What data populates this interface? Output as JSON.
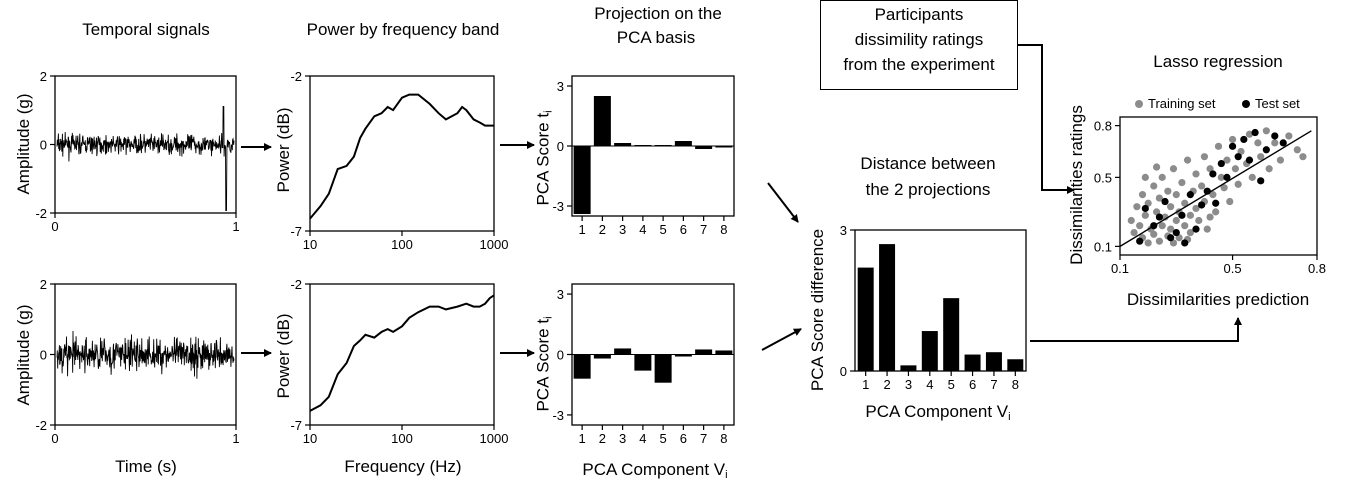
{
  "titles": {
    "temporal": "Temporal signals",
    "power": "Power by frequency band",
    "projection_1": "Projection on the",
    "projection_2": "PCA basis",
    "distance_1": "Distance between",
    "distance_2": "the 2 projections",
    "lasso": "Lasso regression"
  },
  "ratings_box": {
    "line1": "Participants",
    "line2": "dissimility ratings",
    "line3": "from the experiment"
  },
  "labels": {
    "amplitude": "Amplitude (g)",
    "time": "Time (s)",
    "power": "Power (dB)",
    "frequency": "Frequency (Hz)",
    "pca_score": "PCA Score t",
    "pca_score_sub": "i",
    "pca_component": "PCA Component V",
    "pca_component_sub": "i",
    "score_difference": "PCA Score difference",
    "dissim_ratings": "Dissimilarities ratings",
    "dissim_prediction": "Dissimilarities prediction"
  },
  "legend": {
    "training": "Training set",
    "test": "Test set"
  },
  "ticks": {
    "amp": [
      "2",
      "0",
      "-2"
    ],
    "time": [
      "0",
      "1"
    ],
    "pow": [
      "-2",
      "-7"
    ],
    "freq": [
      "10",
      "100",
      "1000"
    ],
    "score": [
      "3",
      "0",
      "-3"
    ],
    "comp": [
      "1",
      "2",
      "3",
      "4",
      "5",
      "6",
      "7",
      "8"
    ],
    "diff": [
      "3",
      "0"
    ],
    "lasso_y": [
      "0.8",
      "0.5",
      "0.1"
    ],
    "lasso_x": [
      "0.1",
      "0.5",
      "0.8"
    ]
  },
  "colors": {
    "training": "#8c8c8c",
    "test": "#000000",
    "bar": "#000000"
  },
  "chart_data": [
    {
      "type": "bar",
      "name": "pca_top",
      "categories": [
        "1",
        "2",
        "3",
        "4",
        "5",
        "6",
        "7",
        "8"
      ],
      "values": [
        -3.4,
        2.5,
        0.15,
        0.05,
        0.05,
        0.25,
        -0.15,
        -0.05
      ],
      "ylim": [
        -3.5,
        3.5
      ]
    },
    {
      "type": "bar",
      "name": "pca_bottom",
      "categories": [
        "1",
        "2",
        "3",
        "4",
        "5",
        "6",
        "7",
        "8"
      ],
      "values": [
        -1.2,
        -0.2,
        0.3,
        -0.8,
        -1.4,
        -0.1,
        0.25,
        0.2
      ],
      "ylim": [
        -3.5,
        3.5
      ]
    },
    {
      "type": "bar",
      "name": "pca_difference",
      "categories": [
        "1",
        "2",
        "3",
        "4",
        "5",
        "6",
        "7",
        "8"
      ],
      "values": [
        2.2,
        2.7,
        0.12,
        0.85,
        1.55,
        0.35,
        0.4,
        0.25
      ],
      "ylim": [
        0,
        3
      ]
    },
    {
      "type": "line",
      "name": "power_top",
      "xscale": "log",
      "x": [
        10,
        13,
        16,
        20,
        25,
        30,
        35,
        40,
        50,
        60,
        70,
        80,
        100,
        120,
        150,
        200,
        250,
        300,
        400,
        450,
        500,
        600,
        700,
        800,
        1000
      ],
      "y": [
        -6.6,
        -6.2,
        -5.8,
        -5.0,
        -4.9,
        -4.6,
        -4.0,
        -3.7,
        -3.3,
        -3.2,
        -3.0,
        -3.1,
        -2.7,
        -2.6,
        -2.6,
        -2.9,
        -3.2,
        -3.4,
        -3.2,
        -3.0,
        -3.1,
        -3.4,
        -3.5,
        -3.6,
        -3.6
      ],
      "xlim": [
        10,
        1000
      ],
      "ylim": [
        -7,
        -2
      ]
    },
    {
      "type": "line",
      "name": "power_bottom",
      "xscale": "log",
      "x": [
        10,
        13,
        16,
        20,
        25,
        30,
        35,
        40,
        50,
        60,
        70,
        80,
        100,
        120,
        150,
        200,
        250,
        300,
        400,
        500,
        600,
        700,
        800,
        900,
        1000
      ],
      "y": [
        -6.5,
        -6.3,
        -6.0,
        -5.2,
        -4.8,
        -4.2,
        -4.0,
        -3.8,
        -3.9,
        -3.7,
        -3.6,
        -3.7,
        -3.5,
        -3.2,
        -3.0,
        -2.8,
        -2.8,
        -2.9,
        -2.8,
        -2.7,
        -2.8,
        -2.8,
        -2.7,
        -2.5,
        -2.4
      ],
      "xlim": [
        10,
        1000
      ],
      "ylim": [
        -7,
        -2
      ]
    },
    {
      "type": "scatter",
      "name": "lasso",
      "xlim": [
        0.1,
        0.8
      ],
      "ylim": [
        0.05,
        0.85
      ],
      "trend": {
        "x": [
          0.1,
          0.78
        ],
        "y": [
          0.1,
          0.77
        ]
      },
      "series": [
        {
          "name": "Training set",
          "points": [
            [
              0.14,
              0.25
            ],
            [
              0.15,
              0.18
            ],
            [
              0.16,
              0.33
            ],
            [
              0.17,
              0.22
            ],
            [
              0.18,
              0.15
            ],
            [
              0.18,
              0.4
            ],
            [
              0.19,
              0.28
            ],
            [
              0.2,
              0.12
            ],
            [
              0.2,
              0.35
            ],
            [
              0.21,
              0.2
            ],
            [
              0.22,
              0.45
            ],
            [
              0.22,
              0.17
            ],
            [
              0.23,
              0.3
            ],
            [
              0.24,
              0.13
            ],
            [
              0.24,
              0.38
            ],
            [
              0.25,
              0.22
            ],
            [
              0.25,
              0.5
            ],
            [
              0.26,
              0.27
            ],
            [
              0.27,
              0.16
            ],
            [
              0.27,
              0.42
            ],
            [
              0.28,
              0.33
            ],
            [
              0.28,
              0.2
            ],
            [
              0.29,
              0.55
            ],
            [
              0.3,
              0.25
            ],
            [
              0.3,
              0.4
            ],
            [
              0.31,
              0.15
            ],
            [
              0.31,
              0.3
            ],
            [
              0.32,
              0.47
            ],
            [
              0.33,
              0.22
            ],
            [
              0.33,
              0.35
            ],
            [
              0.34,
              0.6
            ],
            [
              0.35,
              0.28
            ],
            [
              0.35,
              0.18
            ],
            [
              0.36,
              0.42
            ],
            [
              0.37,
              0.52
            ],
            [
              0.37,
              0.32
            ],
            [
              0.38,
              0.25
            ],
            [
              0.39,
              0.45
            ],
            [
              0.4,
              0.62
            ],
            [
              0.4,
              0.36
            ],
            [
              0.41,
              0.2
            ],
            [
              0.42,
              0.55
            ],
            [
              0.43,
              0.4
            ],
            [
              0.44,
              0.3
            ],
            [
              0.45,
              0.68
            ],
            [
              0.46,
              0.5
            ],
            [
              0.47,
              0.44
            ],
            [
              0.48,
              0.6
            ],
            [
              0.49,
              0.36
            ],
            [
              0.5,
              0.72
            ],
            [
              0.51,
              0.55
            ],
            [
              0.52,
              0.46
            ],
            [
              0.53,
              0.65
            ],
            [
              0.55,
              0.58
            ],
            [
              0.56,
              0.75
            ],
            [
              0.57,
              0.5
            ],
            [
              0.59,
              0.7
            ],
            [
              0.6,
              0.62
            ],
            [
              0.62,
              0.77
            ],
            [
              0.63,
              0.55
            ],
            [
              0.65,
              0.7
            ],
            [
              0.67,
              0.6
            ],
            [
              0.7,
              0.74
            ],
            [
              0.73,
              0.66
            ],
            [
              0.75,
              0.62
            ],
            [
              0.19,
              0.5
            ],
            [
              0.23,
              0.56
            ],
            [
              0.29,
              0.12
            ],
            [
              0.34,
              0.14
            ],
            [
              0.42,
              0.27
            ]
          ]
        },
        {
          "name": "Test set",
          "points": [
            [
              0.17,
              0.13
            ],
            [
              0.19,
              0.32
            ],
            [
              0.22,
              0.22
            ],
            [
              0.24,
              0.27
            ],
            [
              0.26,
              0.36
            ],
            [
              0.28,
              0.15
            ],
            [
              0.3,
              0.18
            ],
            [
              0.32,
              0.28
            ],
            [
              0.33,
              0.12
            ],
            [
              0.35,
              0.4
            ],
            [
              0.37,
              0.2
            ],
            [
              0.39,
              0.34
            ],
            [
              0.41,
              0.42
            ],
            [
              0.44,
              0.35
            ],
            [
              0.46,
              0.58
            ],
            [
              0.48,
              0.5
            ],
            [
              0.5,
              0.68
            ],
            [
              0.52,
              0.62
            ],
            [
              0.54,
              0.72
            ],
            [
              0.56,
              0.6
            ],
            [
              0.58,
              0.76
            ],
            [
              0.6,
              0.48
            ],
            [
              0.62,
              0.66
            ],
            [
              0.65,
              0.74
            ],
            [
              0.68,
              0.7
            ],
            [
              0.43,
              0.52
            ]
          ]
        }
      ]
    }
  ]
}
